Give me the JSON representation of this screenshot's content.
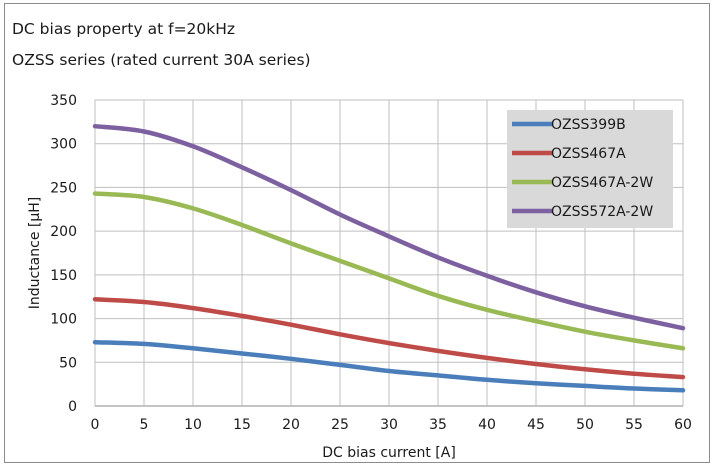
{
  "chart_data": {
    "type": "line",
    "title": "DC bias property at f=20kHz",
    "subtitle": "OZSS series (rated current 30A series)",
    "xlabel": "DC bias current [A]",
    "ylabel": "Inductance [μH]",
    "xlim": [
      0,
      60
    ],
    "ylim": [
      0,
      350
    ],
    "xticks": [
      "0",
      "5",
      "10",
      "15",
      "20",
      "25",
      "30",
      "35",
      "40",
      "45",
      "50",
      "55",
      "60"
    ],
    "yticks": [
      "0",
      "50",
      "100",
      "150",
      "200",
      "250",
      "300",
      "350"
    ],
    "grid": true,
    "legend": "top-right",
    "x": [
      0,
      5,
      10,
      15,
      20,
      25,
      30,
      35,
      40,
      45,
      50,
      55,
      60
    ],
    "series": [
      {
        "name": "OZSS399B",
        "color": "#4a7ebb",
        "values": [
          73,
          71,
          66,
          60,
          54,
          47,
          40,
          35,
          30,
          26,
          23,
          20,
          18
        ]
      },
      {
        "name": "OZSS467A",
        "color": "#be4b48",
        "values": [
          122,
          119,
          112,
          103,
          93,
          82,
          72,
          63,
          55,
          48,
          42,
          37,
          33
        ]
      },
      {
        "name": "OZSS467A-2W",
        "color": "#98b954",
        "values": [
          243,
          239,
          226,
          207,
          186,
          166,
          146,
          126,
          110,
          97,
          85,
          75,
          66
        ]
      },
      {
        "name": "OZSS572A-2W",
        "color": "#7d60a0",
        "values": [
          320,
          314,
          297,
          273,
          247,
          219,
          194,
          170,
          149,
          130,
          114,
          101,
          89
        ]
      }
    ]
  }
}
